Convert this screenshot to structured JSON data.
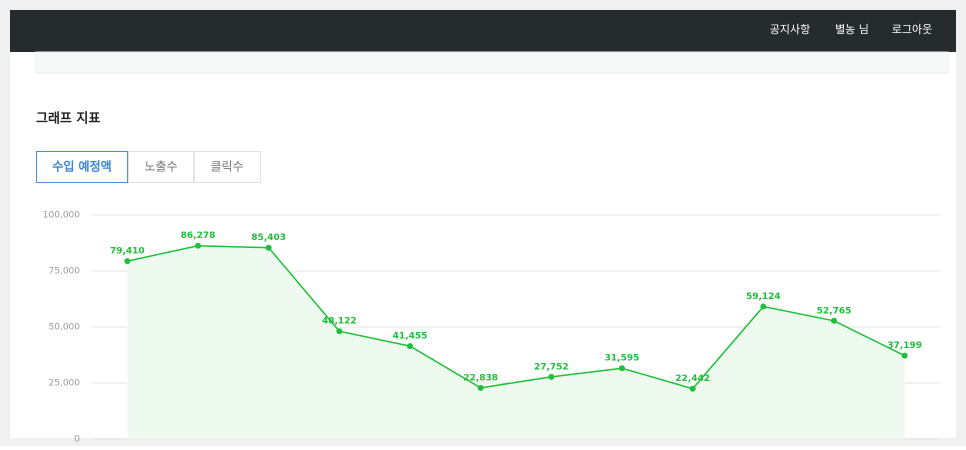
{
  "nav": {
    "notice": "공지사항",
    "user": "별농 님",
    "logout": "로그아웃"
  },
  "section_title": "그래프 지표",
  "tabs": [
    "수입 예정액",
    "노출수",
    "클릭수"
  ],
  "chart_data": {
    "type": "area",
    "values": [
      79410,
      86278,
      85403,
      48122,
      41455,
      22838,
      27752,
      31595,
      22442,
      59124,
      52765,
      37199
    ],
    "value_labels": [
      "79,410",
      "86,278",
      "85,403",
      "48,122",
      "41,455",
      "22,838",
      "27,752",
      "31,595",
      "22,442",
      "59,124",
      "52,765",
      "37,199"
    ],
    "color": "#1fbf3a",
    "fill": "#eefaf0",
    "ylim": [
      0,
      100000
    ],
    "yticks": [
      {
        "value": 0,
        "label": "0"
      },
      {
        "value": 25000,
        "label": "25,000"
      },
      {
        "value": 50000,
        "label": "50,000"
      },
      {
        "value": 75000,
        "label": "75,000"
      },
      {
        "value": 100000,
        "label": "100,000"
      }
    ],
    "grid": true
  }
}
